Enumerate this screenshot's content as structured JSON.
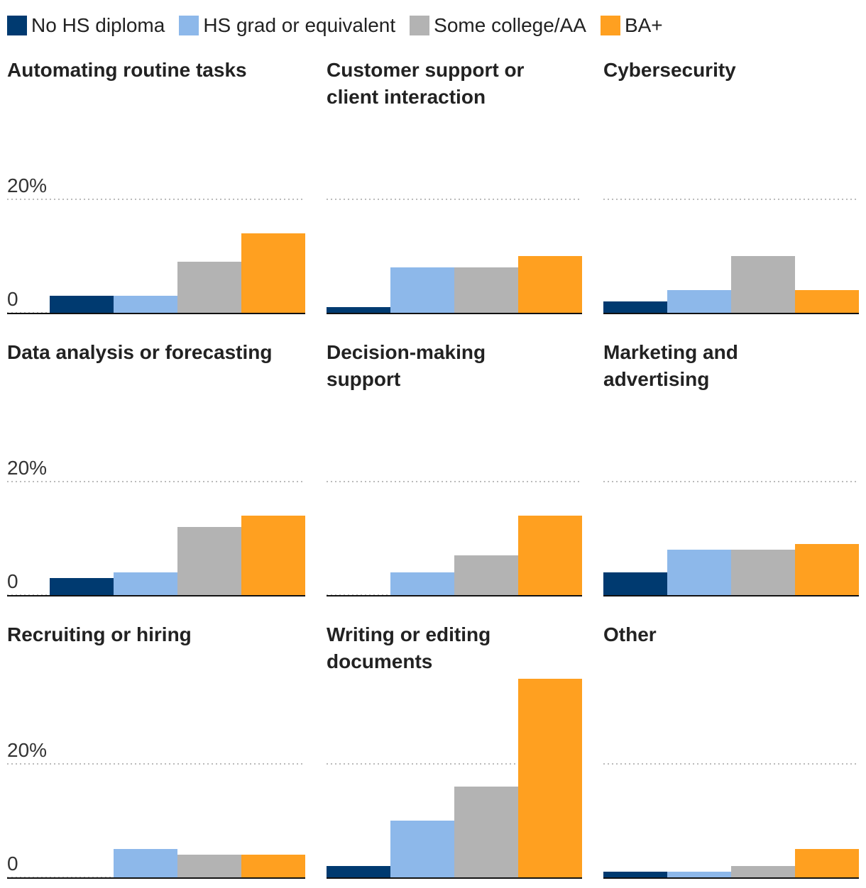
{
  "chart_data": {
    "type": "bar",
    "series": [
      {
        "name": "No HS diploma",
        "color": "#003a70"
      },
      {
        "name": "HS grad or equivalent",
        "color": "#8db8ea"
      },
      {
        "name": "Some college/AA",
        "color": "#b3b3b3"
      },
      {
        "name": "BA+",
        "color": "#ffa020"
      }
    ],
    "panels": [
      {
        "title": "Automating routine tasks",
        "values": [
          3,
          3,
          9,
          14
        ]
      },
      {
        "title": "Customer support or client interaction",
        "values": [
          1,
          8,
          8,
          10
        ]
      },
      {
        "title": "Cybersecurity",
        "values": [
          2,
          4,
          10,
          4
        ]
      },
      {
        "title": "Data analysis or forecasting",
        "values": [
          3,
          4,
          12,
          14
        ]
      },
      {
        "title": "Decision-making support",
        "values": [
          0,
          4,
          7,
          14
        ]
      },
      {
        "title": "Marketing and advertising",
        "values": [
          4,
          8,
          8,
          9
        ]
      },
      {
        "title": "Recruiting or hiring",
        "values": [
          0,
          5,
          4,
          4
        ]
      },
      {
        "title": "Writing or editing documents",
        "values": [
          2,
          10,
          16,
          35
        ]
      },
      {
        "title": "Other",
        "values": [
          1,
          1,
          2,
          5
        ]
      }
    ],
    "ylim": [
      0,
      40
    ],
    "yticks": [
      0,
      {
        "value": 20,
        "label": "20%"
      }
    ],
    "grid": true
  }
}
